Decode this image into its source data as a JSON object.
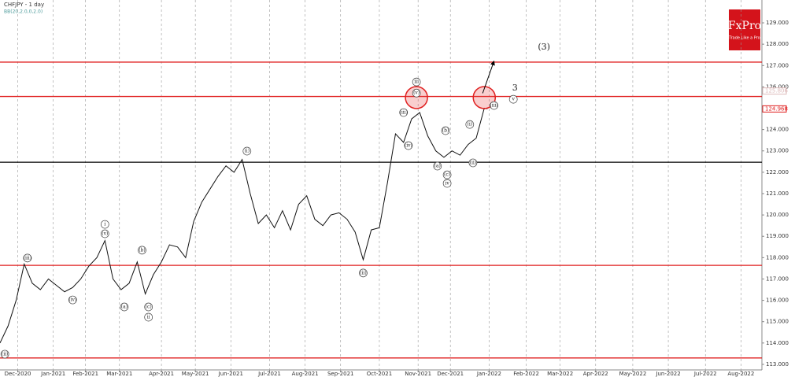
{
  "chart_data": {
    "type": "line",
    "title": "CHFJPY - 1 day",
    "subtitle": "BB(20,2.0,0,2.0)",
    "logo": {
      "name": "FxPro",
      "tagline": "Trade Like a Pro"
    },
    "color": "#111111",
    "xlim": [
      0,
      472
    ],
    "ylim": [
      112.74,
      130.07
    ],
    "grid": true,
    "xticks": [
      {
        "value": 11,
        "label": "Dec-2020"
      },
      {
        "value": 33,
        "label": "Jan-2021"
      },
      {
        "value": 53,
        "label": "Feb-2021"
      },
      {
        "value": 74,
        "label": "Mar-2021"
      },
      {
        "value": 100,
        "label": "Apr-2021"
      },
      {
        "value": 121,
        "label": "May-2021"
      },
      {
        "value": 143,
        "label": "Jun-2021"
      },
      {
        "value": 167,
        "label": "Jul-2021"
      },
      {
        "value": 189,
        "label": "Aug-2021"
      },
      {
        "value": 211,
        "label": "Sep-2021"
      },
      {
        "value": 235,
        "label": "Oct-2021"
      },
      {
        "value": 259,
        "label": "Nov-2021"
      },
      {
        "value": 279,
        "label": "Dec-2021"
      },
      {
        "value": 303,
        "label": "Jan-2022"
      },
      {
        "value": 326,
        "label": "Feb-2022"
      },
      {
        "value": 347,
        "label": "Mar-2022"
      },
      {
        "value": 369,
        "label": "Apr-2022"
      },
      {
        "value": 392,
        "label": "May-2022"
      },
      {
        "value": 414,
        "label": "Jun-2022"
      },
      {
        "value": 437,
        "label": "Jul-2022"
      },
      {
        "value": 459,
        "label": "Aug-2022"
      }
    ],
    "yticks": [
      {
        "value": 113,
        "label": "113.000"
      },
      {
        "value": 114,
        "label": "114.000"
      },
      {
        "value": 115,
        "label": "115.000"
      },
      {
        "value": 116,
        "label": "116.000"
      },
      {
        "value": 117,
        "label": "117.000"
      },
      {
        "value": 118,
        "label": "118.000"
      },
      {
        "value": 119,
        "label": "119.000"
      },
      {
        "value": 120,
        "label": "120.000"
      },
      {
        "value": 121,
        "label": "121.000"
      },
      {
        "value": 122,
        "label": "122.000"
      },
      {
        "value": 123,
        "label": "123.000"
      },
      {
        "value": 124,
        "label": "124.000"
      },
      {
        "value": 126,
        "label": "126.000"
      },
      {
        "value": 127,
        "label": "127.000"
      },
      {
        "value": 128,
        "label": "128.000"
      },
      {
        "value": 129,
        "label": "129.000"
      }
    ],
    "price_labels": [
      {
        "value": 125.806,
        "label": "125.806",
        "color": "#ddbbbb"
      },
      {
        "value": 124.968,
        "label": "124.968",
        "color": "#e02020"
      }
    ],
    "x": [
      0,
      5,
      10,
      15,
      20,
      25,
      30,
      35,
      40,
      45,
      50,
      55,
      60,
      65,
      70,
      75,
      80,
      85,
      90,
      95,
      100,
      105,
      110,
      115,
      120,
      125,
      130,
      135,
      140,
      145,
      150,
      155,
      160,
      165,
      170,
      175,
      180,
      185,
      190,
      195,
      200,
      205,
      210,
      215,
      220,
      225,
      230,
      235,
      240,
      245,
      250,
      255,
      260,
      265,
      270,
      275,
      280,
      285,
      290,
      295,
      300,
      302
    ],
    "values": [
      114.0,
      114.8,
      116.0,
      117.7,
      116.8,
      116.5,
      117.0,
      116.7,
      116.4,
      116.6,
      117.0,
      117.6,
      118.0,
      118.8,
      117.0,
      116.5,
      116.8,
      117.8,
      116.3,
      117.2,
      117.8,
      118.6,
      118.5,
      118.0,
      119.7,
      120.6,
      121.2,
      121.8,
      122.3,
      122.0,
      122.6,
      121.0,
      119.6,
      120.0,
      119.4,
      120.2,
      119.3,
      120.5,
      120.9,
      119.8,
      119.5,
      120.0,
      120.1,
      119.8,
      119.2,
      117.9,
      119.3,
      119.4,
      121.5,
      123.8,
      123.4,
      124.5,
      124.8,
      123.7,
      123.0,
      122.7,
      123.0,
      122.8,
      123.3,
      123.6,
      125.0,
      124.97
    ],
    "levels": [
      {
        "value": 127.16,
        "color": "#e02020"
      },
      {
        "value": 125.55,
        "color": "#e02020"
      },
      {
        "value": 122.47,
        "color": "#000000"
      },
      {
        "value": 117.64,
        "color": "#e02020"
      },
      {
        "value": 113.3,
        "color": "#e02020"
      }
    ],
    "highlights": [
      {
        "x": 258,
        "y": 125.5
      },
      {
        "x": 300,
        "y": 125.5
      }
    ],
    "arrow": {
      "from": [
        299,
        125.7
      ],
      "to": [
        306,
        127.2
      ]
    },
    "annotations": [
      {
        "text": "(iii)",
        "x": 17,
        "y": 117.98,
        "circled": true
      },
      {
        "text": "i",
        "x": 65,
        "y": 119.56,
        "circled": true
      },
      {
        "text": "(v)",
        "x": 65,
        "y": 119.12,
        "circled": true
      },
      {
        "text": "(iv)",
        "x": 45,
        "y": 116.02,
        "circled": true
      },
      {
        "text": "(a)",
        "x": 77,
        "y": 115.69,
        "circled": true
      },
      {
        "text": "(b)",
        "x": 88,
        "y": 118.35,
        "circled": true
      },
      {
        "text": "(c)",
        "x": 92,
        "y": 115.69,
        "circled": true
      },
      {
        "text": "ii",
        "x": 92,
        "y": 115.21,
        "circled": true
      },
      {
        "text": "(i)",
        "x": 153,
        "y": 122.99,
        "circled": true
      },
      {
        "text": "(ii)",
        "x": 225,
        "y": 117.28,
        "circled": true
      },
      {
        "text": "(iii)",
        "x": 250,
        "y": 124.8,
        "circled": true
      },
      {
        "text": "(iv)",
        "x": 253,
        "y": 123.25,
        "circled": true
      },
      {
        "text": "iii",
        "x": 258,
        "y": 126.23,
        "circled": true
      },
      {
        "text": "(v)",
        "x": 258,
        "y": 125.71,
        "circled": true
      },
      {
        "text": "(b)",
        "x": 276,
        "y": 123.95,
        "circled": true
      },
      {
        "text": "(a)",
        "x": 271,
        "y": 122.29,
        "circled": true
      },
      {
        "text": "(c)",
        "x": 277,
        "y": 121.88,
        "circled": true
      },
      {
        "text": "iv",
        "x": 277,
        "y": 121.48,
        "circled": true
      },
      {
        "text": "(i)",
        "x": 291,
        "y": 124.24,
        "circled": true
      },
      {
        "text": "(ii)",
        "x": 293,
        "y": 122.44,
        "circled": true
      },
      {
        "text": "(iii)",
        "x": 306,
        "y": 125.13,
        "circled": true
      },
      {
        "text": "3",
        "x": 319,
        "y": 125.94,
        "circled": false
      },
      {
        "text": "v",
        "x": 318,
        "y": 125.42,
        "circled": true
      },
      {
        "text": "(3)",
        "x": 337,
        "y": 127.86,
        "circled": false
      },
      {
        "text": "(ii)",
        "x": 3,
        "y": 113.48,
        "circled": true
      }
    ]
  }
}
